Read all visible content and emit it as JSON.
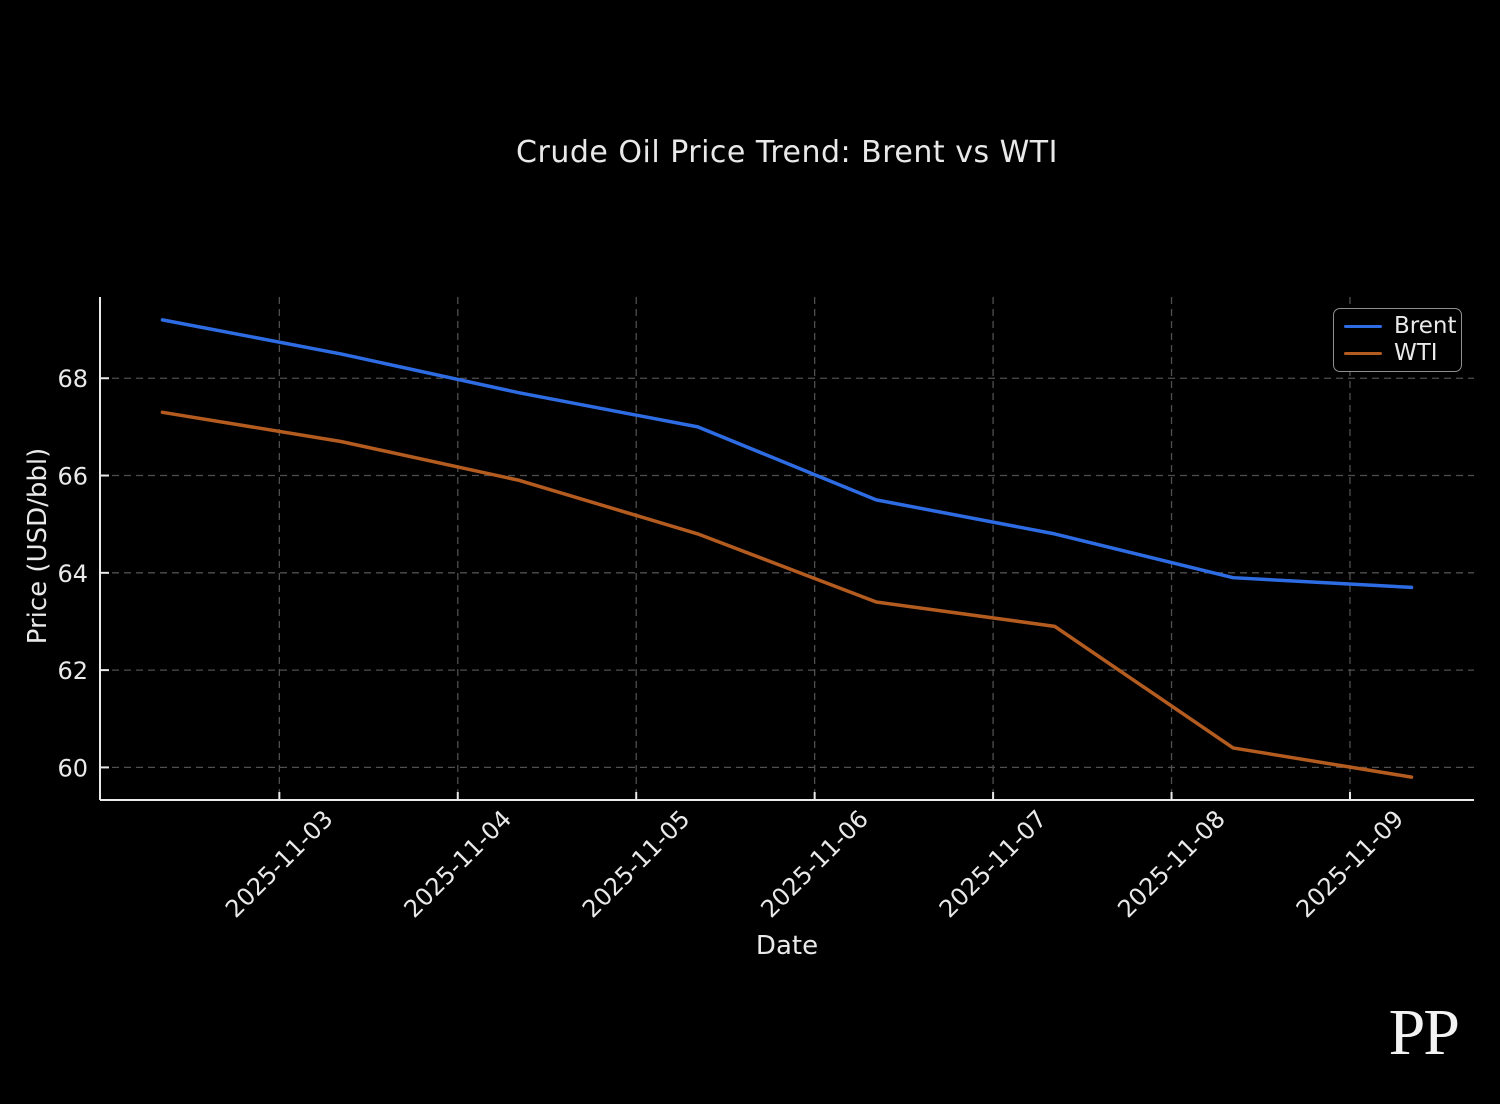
{
  "figure": {
    "background": "#000000",
    "text_color": "#e9e9e9",
    "watermark": "PP"
  },
  "chart_data": {
    "type": "line",
    "title": "Crude Oil Price Trend: Brent vs WTI",
    "xlabel": "Date",
    "ylabel": "Price (USD/bbl)",
    "x": [
      "2025-11-02",
      "2025-11-03",
      "2025-11-04",
      "2025-11-05",
      "2025-11-06",
      "2025-11-07",
      "2025-11-08",
      "2025-11-09"
    ],
    "series": [
      {
        "name": "Brent",
        "color": "#2e6ce4",
        "values": [
          69.2,
          68.5,
          67.7,
          67.0,
          65.5,
          64.8,
          63.9,
          63.7
        ]
      },
      {
        "name": "WTI",
        "color": "#b45c20",
        "values": [
          67.3,
          66.7,
          65.9,
          64.8,
          63.4,
          62.9,
          60.4,
          59.8
        ]
      }
    ],
    "xtick_labels": [
      "2025-11-03",
      "2025-11-04",
      "2025-11-05",
      "2025-11-06",
      "2025-11-07",
      "2025-11-08",
      "2025-11-09"
    ],
    "yticks": [
      60,
      62,
      64,
      66,
      68
    ],
    "ylim": [
      59.33,
      69.67
    ],
    "grid": true,
    "grid_style": "dashed",
    "grid_color": "#4f4f4f",
    "axis_color": "#e9e9e9",
    "legend_position": "upper right",
    "line_width": 3.5
  }
}
